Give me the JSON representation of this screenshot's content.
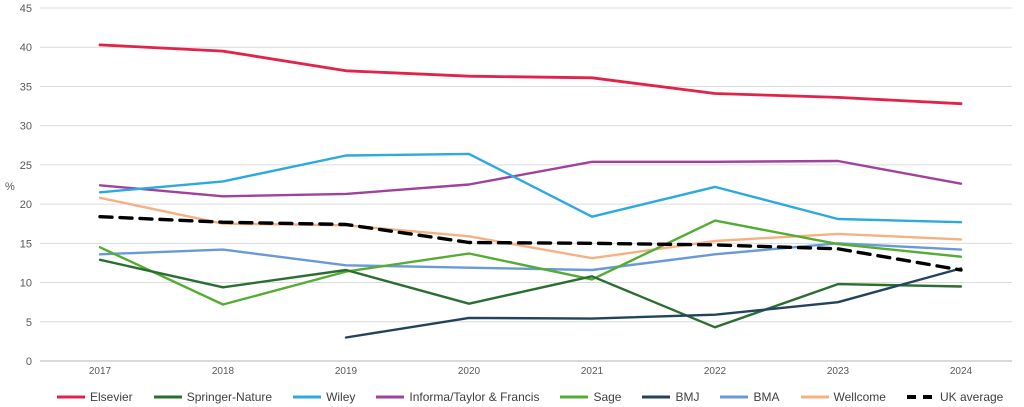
{
  "chart_data": {
    "type": "line",
    "title": "",
    "xlabel": "",
    "ylabel": "%",
    "ylim": [
      0,
      45
    ],
    "ytick_step": 5,
    "yticks": [
      0,
      5,
      10,
      15,
      20,
      25,
      30,
      35,
      40,
      45
    ],
    "grid": true,
    "legend_position": "bottom",
    "categories": [
      "2017",
      "2018",
      "2019",
      "2020",
      "2021",
      "2022",
      "2023",
      "2024"
    ],
    "series": [
      {
        "name": "Elsevier",
        "color": "#e32249",
        "dashed": false,
        "values": [
          40.3,
          39.5,
          37.0,
          36.3,
          36.1,
          34.1,
          33.6,
          32.8
        ]
      },
      {
        "name": "Springer-Nature",
        "color": "#2c6e31",
        "dashed": false,
        "values": [
          12.9,
          9.4,
          11.6,
          7.3,
          10.8,
          4.3,
          9.8,
          9.5
        ]
      },
      {
        "name": "Wiley",
        "color": "#2ba9e0",
        "dashed": false,
        "values": [
          21.5,
          22.9,
          26.2,
          26.4,
          18.4,
          22.2,
          18.1,
          17.7
        ]
      },
      {
        "name": "Informa/Taylor & Francis",
        "color": "#a2409e",
        "dashed": false,
        "values": [
          22.4,
          21.0,
          21.3,
          22.5,
          25.4,
          25.4,
          25.5,
          22.6
        ]
      },
      {
        "name": "Sage",
        "color": "#54ad32",
        "dashed": false,
        "values": [
          14.5,
          7.2,
          11.4,
          13.7,
          10.4,
          17.9,
          14.9,
          13.3
        ]
      },
      {
        "name": "BMJ",
        "color": "#21445c",
        "dashed": false,
        "values": [
          null,
          null,
          3.0,
          5.5,
          5.4,
          5.9,
          7.5,
          11.8
        ]
      },
      {
        "name": "BMA",
        "color": "#6a99d8",
        "dashed": false,
        "values": [
          13.6,
          14.2,
          12.2,
          11.9,
          11.6,
          13.6,
          15.0,
          14.2
        ]
      },
      {
        "name": "Wellcome",
        "color": "#f5b183",
        "dashed": false,
        "values": [
          20.8,
          17.5,
          17.3,
          15.9,
          13.1,
          15.3,
          16.2,
          15.5
        ]
      },
      {
        "name": "UK average",
        "color": "#000000",
        "dashed": true,
        "values": [
          18.4,
          17.7,
          17.4,
          15.1,
          15.0,
          14.8,
          14.3,
          11.6
        ]
      }
    ],
    "colors": {
      "gridline": "#dcdcdc",
      "baseline": "#b3b3b3",
      "axis_text": "#595959",
      "legend_text": "#404040"
    }
  }
}
